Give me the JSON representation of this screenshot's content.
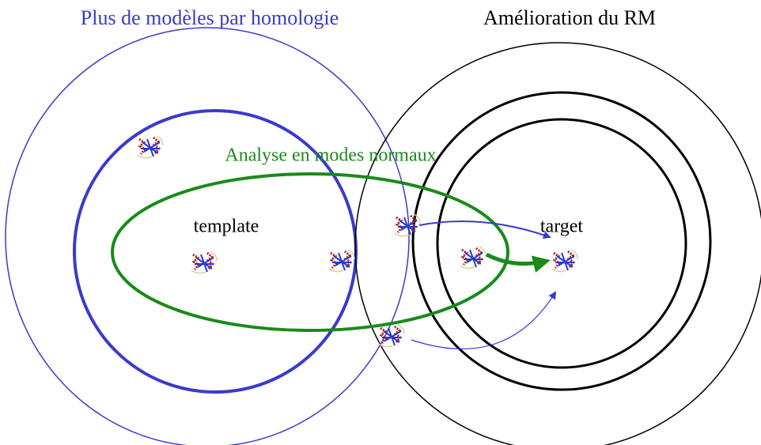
{
  "titles": {
    "left": "Plus de modèles par homologie",
    "right": "Amélioration du RM"
  },
  "labels": {
    "nma": "Analyse en modes normaux",
    "template": "template",
    "target": "target"
  }
}
